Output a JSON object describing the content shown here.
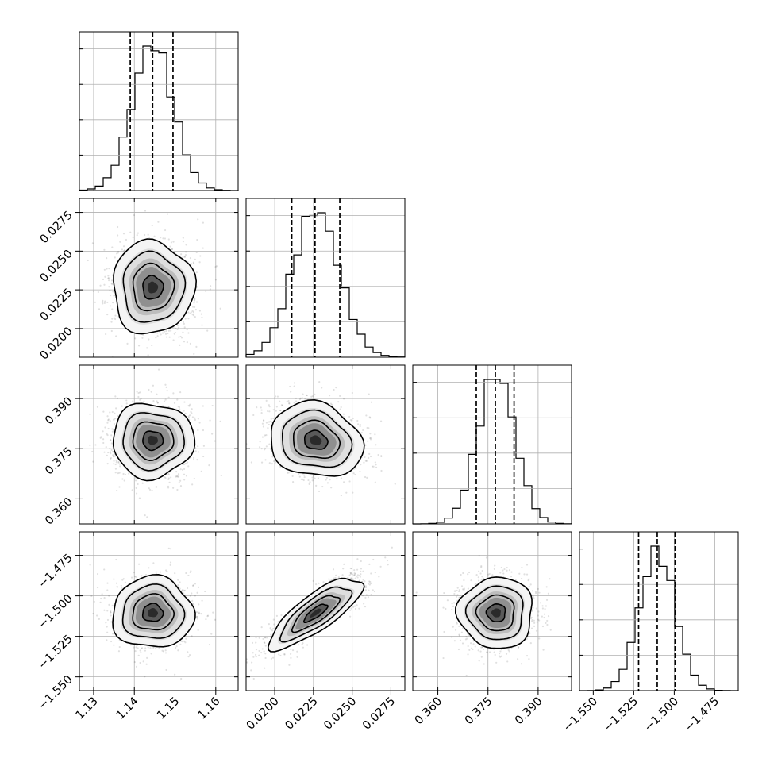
{
  "chart_data": {
    "type": "corner",
    "title": "",
    "parameters": [
      {
        "index": 0,
        "ticks": [
          1.13,
          1.14,
          1.15,
          1.16
        ],
        "tick_labels": [
          "1.13",
          "1.14",
          "1.15",
          "1.16"
        ],
        "range": [
          1.1265,
          1.1655
        ],
        "mean": 1.1445,
        "sd": 0.005,
        "quantiles": [
          1.139,
          1.1445,
          1.1495
        ],
        "hist_peak_rel": 1.0
      },
      {
        "index": 1,
        "ticks": [
          0.02,
          0.0225,
          0.025,
          0.0275
        ],
        "tick_labels": [
          "0.0200",
          "0.0225",
          "0.0250",
          "0.0275"
        ],
        "range": [
          0.01815,
          0.0284
        ],
        "mean": 0.02265,
        "sd": 0.0015,
        "quantiles": [
          0.0211,
          0.0226,
          0.0242
        ],
        "hist_peak_rel": 1.0
      },
      {
        "index": 2,
        "ticks": [
          0.36,
          0.375,
          0.39
        ],
        "tick_labels": [
          "0.360",
          "0.375",
          "0.390"
        ],
        "range": [
          0.3525,
          0.4
        ],
        "mean": 0.3775,
        "sd": 0.0056,
        "quantiles": [
          0.3715,
          0.3772,
          0.3828
        ],
        "hist_peak_rel": 1.0
      },
      {
        "index": 3,
        "ticks": [
          -1.55,
          -1.525,
          -1.5,
          -1.475
        ],
        "tick_labels": [
          "−1.550",
          "−1.525",
          "−1.500",
          "−1.475"
        ],
        "range": [
          -1.5585,
          -1.4605
        ],
        "mean": -1.5105,
        "sd": 0.011,
        "quantiles": [
          -1.522,
          -1.5105,
          -1.4995
        ],
        "hist_peak_rel": 1.0
      }
    ],
    "pairs": [
      {
        "x": 0,
        "y": 1,
        "correlation": 0.0
      },
      {
        "x": 0,
        "y": 2,
        "correlation": 0.0
      },
      {
        "x": 1,
        "y": 2,
        "correlation": -0.15
      },
      {
        "x": 0,
        "y": 3,
        "correlation": 0.0
      },
      {
        "x": 1,
        "y": 3,
        "correlation": 0.8
      },
      {
        "x": 2,
        "y": 3,
        "correlation": 0.0
      }
    ],
    "contour_levels_sigma": [
      0.5,
      1.0,
      1.5,
      2.0
    ],
    "grid": true,
    "quantile_lines": "dashed"
  },
  "colors": {
    "axes": "#000000",
    "grid": "#b0b0b0",
    "points": "#808080",
    "density_dark": "#202020",
    "density_light": "#f2f2f2"
  }
}
